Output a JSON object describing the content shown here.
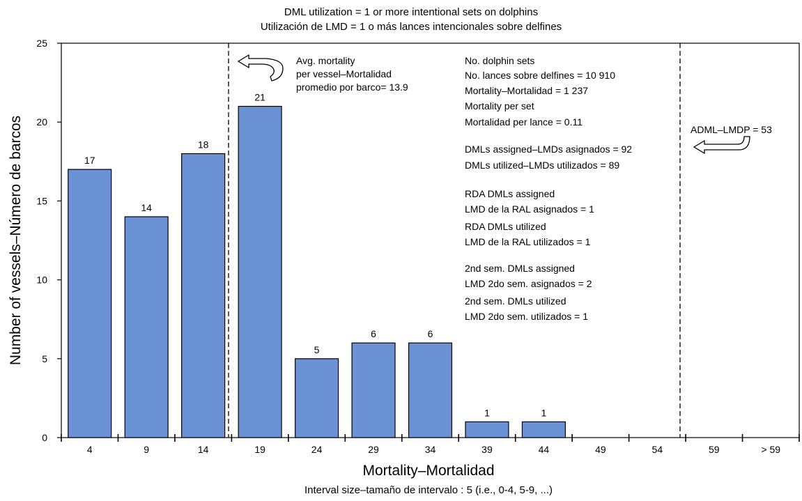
{
  "chart_data": {
    "type": "bar",
    "title_lines": [
      "DML utilization = 1 or more intentional sets on dolphins",
      "Utilización de LMD = 1 o más lances intencionales sobre delfines"
    ],
    "xlabel": "Mortality–Mortalidad",
    "x_subnote": "Interval size–tamaño de intervalo : 5 (i.e., 0-4, 5-9, ...)",
    "ylabel": "Number of vessels–Número de barcos",
    "ylim": [
      0,
      25
    ],
    "yticks": [
      0,
      5,
      10,
      15,
      20,
      25
    ],
    "categories": [
      "4",
      "9",
      "14",
      "19",
      "24",
      "29",
      "34",
      "39",
      "44",
      "49",
      "54",
      "59",
      "> 59"
    ],
    "values": [
      17,
      14,
      18,
      21,
      5,
      6,
      6,
      1,
      1,
      0,
      0,
      0,
      0
    ],
    "data_labels": [
      "17",
      "14",
      "18",
      "21",
      "5",
      "6",
      "6",
      "1",
      "1",
      "",
      "",
      "",
      ""
    ],
    "bar_color": "#6a92d4",
    "grid": false,
    "reference_lines": [
      {
        "name": "avg-mortality",
        "x_value": 13.9
      },
      {
        "name": "adml-lmdp",
        "x_value": 53
      }
    ],
    "annotations": {
      "avg_mortality": [
        "Avg. mortality",
        "per vessel–Mortalidad",
        "promedio por barco= 13.9"
      ],
      "adml": "ADML–LMDP = 53",
      "stats": [
        "No. dolphin sets",
        "No. lances sobre delfines = 10 910",
        "Mortality–Mortalidad = 1 237",
        "Mortality per set",
        "Mortalidad per lance = 0.11",
        "DMLs assigned–LMDs asignados = 92",
        "DMLs utilized–LMDs utilizados =  89",
        "RDA DMLs assigned",
        "LMD de la RAL asignados  = 1",
        "RDA DMLs utilized",
        "LMD de la RAL utilizados = 1",
        "2nd sem. DMLs assigned",
        "LMD 2do sem. asignados = 2",
        "2nd sem. DMLs utilized",
        "LMD 2do sem. utilizados =  1"
      ]
    }
  }
}
